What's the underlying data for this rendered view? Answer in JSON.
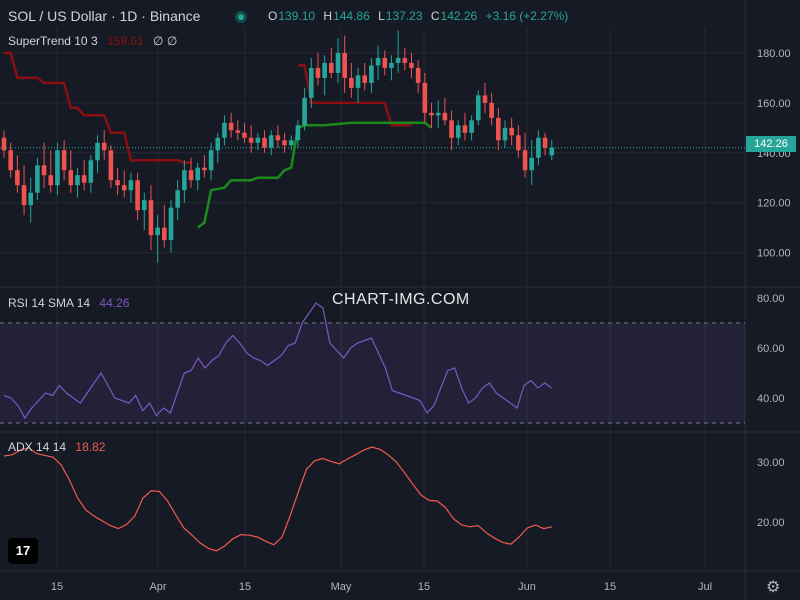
{
  "header": {
    "title": "SOL / US Dollar · 1D · Binance",
    "ohlc": [
      {
        "k": "O",
        "v": "139.10"
      },
      {
        "k": "H",
        "v": "144.86"
      },
      {
        "k": "L",
        "v": "137.23"
      },
      {
        "k": "C",
        "v": "142.26"
      }
    ],
    "change": "+3.16 (+2.27%)"
  },
  "indicators": {
    "supertrend": {
      "label": "SuperTrend 10 3",
      "value": "159.61",
      "icons": [
        "∅",
        "∅"
      ]
    },
    "rsi": {
      "label": "RSI 14 SMA 14",
      "value": "44.26"
    },
    "adx": {
      "label": "ADX 14 14",
      "value": "18.82"
    }
  },
  "watermark": "CHART-IMG.COM",
  "last_price_label": "142.26",
  "colors": {
    "background": "#161a25",
    "up": "#26a69a",
    "down": "#ef5350",
    "supertrend_up": "#1b8a1b",
    "supertrend_down": "#8b0f10",
    "rsi": "#7e57c2",
    "adx": "#f05a4f",
    "grid": "#242835",
    "text": "#b2b5be"
  },
  "chart_data": [
    {
      "type": "candlestick",
      "title": "SOL / US Dollar · 1D · Binance",
      "ylim": [
        85,
        190
      ],
      "yticks": [
        100,
        120,
        140,
        160,
        180
      ],
      "xticks": [
        "15",
        "Apr",
        "15",
        "May",
        "15",
        "Jun",
        "15",
        "Jul"
      ],
      "x_first_date": "2024-03-01",
      "candles": [
        [
          146,
          149,
          138,
          141
        ],
        [
          141,
          144,
          130,
          133
        ],
        [
          133,
          139,
          124,
          127
        ],
        [
          127,
          135,
          115,
          119
        ],
        [
          119,
          130,
          112,
          124
        ],
        [
          124,
          138,
          121,
          135
        ],
        [
          135,
          144,
          126,
          131
        ],
        [
          131,
          141,
          124,
          127
        ],
        [
          127,
          144,
          123,
          141
        ],
        [
          141,
          145,
          129,
          133
        ],
        [
          133,
          141,
          124,
          127
        ],
        [
          127,
          134,
          122,
          131
        ],
        [
          131,
          137,
          125,
          128
        ],
        [
          128,
          139,
          124,
          137
        ],
        [
          137,
          147,
          132,
          144
        ],
        [
          144,
          149,
          137,
          141
        ],
        [
          141,
          143,
          126,
          129
        ],
        [
          129,
          134,
          123,
          127
        ],
        [
          127,
          133,
          122,
          125
        ],
        [
          125,
          132,
          120,
          129
        ],
        [
          129,
          132,
          113,
          117
        ],
        [
          117,
          124,
          109,
          121
        ],
        [
          121,
          127,
          101,
          107
        ],
        [
          107,
          115,
          96,
          110
        ],
        [
          110,
          119,
          102,
          105
        ],
        [
          105,
          121,
          100,
          118
        ],
        [
          118,
          129,
          113,
          125
        ],
        [
          125,
          137,
          120,
          133
        ],
        [
          133,
          138,
          126,
          129
        ],
        [
          129,
          136,
          125,
          134
        ],
        [
          134,
          139,
          130,
          133
        ],
        [
          133,
          144,
          129,
          141
        ],
        [
          141,
          148,
          136,
          146
        ],
        [
          146,
          155,
          143,
          152
        ],
        [
          152,
          156,
          146,
          149
        ],
        [
          149,
          153,
          145,
          148
        ],
        [
          148,
          152,
          144,
          146
        ],
        [
          146,
          151,
          140,
          144
        ],
        [
          144,
          148,
          141,
          146
        ],
        [
          146,
          149,
          140,
          142
        ],
        [
          142,
          149,
          139,
          147
        ],
        [
          147,
          151,
          142,
          145
        ],
        [
          145,
          148,
          140,
          143
        ],
        [
          143,
          147,
          141,
          145
        ],
        [
          145,
          153,
          142,
          151
        ],
        [
          151,
          166,
          149,
          162
        ],
        [
          162,
          178,
          158,
          174
        ],
        [
          174,
          180,
          167,
          170
        ],
        [
          170,
          179,
          163,
          176
        ],
        [
          176,
          182,
          170,
          172
        ],
        [
          172,
          186,
          168,
          180
        ],
        [
          180,
          187,
          164,
          170
        ],
        [
          170,
          176,
          162,
          166
        ],
        [
          166,
          174,
          160,
          171
        ],
        [
          171,
          176,
          165,
          168
        ],
        [
          168,
          178,
          164,
          175
        ],
        [
          175,
          183,
          169,
          178
        ],
        [
          178,
          181,
          171,
          174
        ],
        [
          174,
          179,
          169,
          176
        ],
        [
          176,
          189,
          172,
          178
        ],
        [
          178,
          182,
          173,
          176
        ],
        [
          176,
          180,
          170,
          174
        ],
        [
          174,
          177,
          164,
          168
        ],
        [
          168,
          172,
          152,
          156
        ],
        [
          156,
          160,
          150,
          155
        ],
        [
          155,
          161,
          150,
          156
        ],
        [
          156,
          162,
          151,
          153
        ],
        [
          153,
          157,
          141,
          146
        ],
        [
          146,
          153,
          143,
          151
        ],
        [
          151,
          156,
          145,
          148
        ],
        [
          148,
          155,
          145,
          153
        ],
        [
          153,
          165,
          151,
          163
        ],
        [
          163,
          168,
          156,
          160
        ],
        [
          160,
          164,
          151,
          154
        ],
        [
          154,
          158,
          141,
          145
        ],
        [
          145,
          153,
          142,
          150
        ],
        [
          150,
          154,
          143,
          147
        ],
        [
          147,
          151,
          138,
          141
        ],
        [
          141,
          148,
          130,
          133
        ],
        [
          133,
          145,
          127,
          138
        ],
        [
          138,
          149,
          135,
          146
        ],
        [
          146,
          148,
          139,
          142
        ],
        [
          139,
          145,
          137,
          142
        ]
      ],
      "supertrend": {
        "down_segments": [
          [
            [
              0,
              180
            ],
            [
              1,
              180
            ],
            [
              2,
              170
            ],
            [
              5,
              170
            ],
            [
              6,
              168
            ],
            [
              9,
              168
            ],
            [
              10,
              158
            ],
            [
              11,
              158
            ],
            [
              12,
              155
            ],
            [
              15,
              155
            ],
            [
              16,
              148
            ],
            [
              18,
              148
            ],
            [
              19,
              137
            ],
            [
              26,
              137
            ],
            [
              27,
              136
            ],
            [
              28,
              136
            ]
          ],
          [
            [
              44,
              175
            ],
            [
              45,
              175
            ],
            [
              46,
              160
            ],
            [
              57,
              160
            ],
            [
              58,
              151
            ],
            [
              61,
              151
            ]
          ]
        ],
        "up_segments": [
          [
            [
              29,
              110
            ],
            [
              30,
              112
            ],
            [
              31,
              125
            ],
            [
              33,
              126
            ],
            [
              34,
              129
            ],
            [
              37,
              129
            ],
            [
              38,
              130
            ],
            [
              41,
              130
            ],
            [
              42,
              133
            ],
            [
              43,
              134
            ],
            [
              44,
              150
            ],
            [
              45,
              151
            ],
            [
              48,
              151
            ],
            [
              52,
              152
            ],
            [
              56,
              152
            ],
            [
              63,
              152
            ],
            [
              64,
              150
            ]
          ]
        ]
      },
      "rsi": {
        "label": "RSI 14 SMA 14",
        "ylim": [
          28,
          82
        ],
        "yticks": [
          40,
          60,
          80
        ],
        "bands": [
          30,
          70
        ],
        "values": [
          41,
          40,
          37,
          32,
          36,
          39,
          42,
          41,
          45,
          42,
          40,
          38,
          42,
          46,
          50,
          45,
          40,
          39,
          38,
          41,
          35,
          38,
          33,
          36,
          34,
          42,
          50,
          51,
          56,
          52,
          55,
          57,
          62,
          65,
          62,
          58,
          56,
          55,
          53,
          55,
          57,
          61,
          62,
          70,
          74,
          78,
          76,
          62,
          59,
          56,
          60,
          62,
          63,
          64,
          58,
          52,
          43,
          42,
          41,
          40,
          39,
          34,
          37,
          44,
          51,
          52,
          44,
          38,
          40,
          44,
          46,
          42,
          40,
          38,
          36,
          45,
          47,
          44,
          46,
          44
        ]
      },
      "adx": {
        "label": "ADX 14 14",
        "ylim": [
          12,
          34
        ],
        "yticks": [
          20,
          30
        ],
        "values": [
          31,
          31.2,
          32,
          32.4,
          31.4,
          31.1,
          30.8,
          29.5,
          27,
          24,
          22,
          21,
          20.2,
          19.4,
          18.9,
          19.6,
          21,
          24,
          25.2,
          25.1,
          23.5,
          21.2,
          19,
          17.8,
          16.5,
          15.6,
          15.2,
          16,
          17.2,
          17.9,
          17.8,
          17.5,
          16.8,
          16.2,
          17.5,
          21,
          25,
          28.8,
          30.2,
          30.6,
          30.1,
          29.7,
          30.5,
          31.2,
          32,
          32.5,
          32.1,
          31.2,
          30,
          28.2,
          26.3,
          24.5,
          23.6,
          23.5,
          22.4,
          20.5,
          19.5,
          19.2,
          19.4,
          18.2,
          17.3,
          16.6,
          16.3,
          17.5,
          19,
          19.5,
          18.9,
          19.2
        ]
      }
    }
  ]
}
